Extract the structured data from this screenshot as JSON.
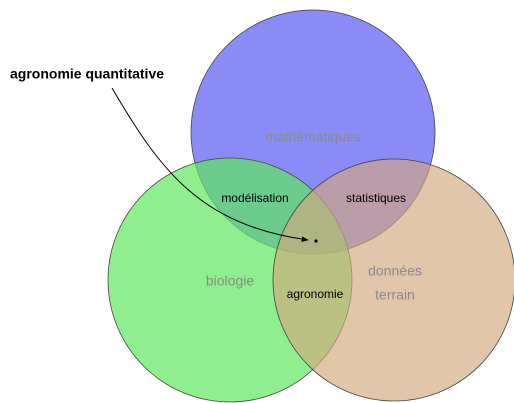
{
  "callout": {
    "label": "agronomie quantitative"
  },
  "sets": [
    {
      "lines": [
        "mathématiques"
      ]
    },
    {
      "lines": [
        "biologie"
      ]
    },
    {
      "lines": [
        "données",
        "terrain"
      ]
    }
  ],
  "intersections": [
    {
      "label": "modélisation"
    },
    {
      "label": "statistiques"
    },
    {
      "label": "agronomie"
    }
  ]
}
